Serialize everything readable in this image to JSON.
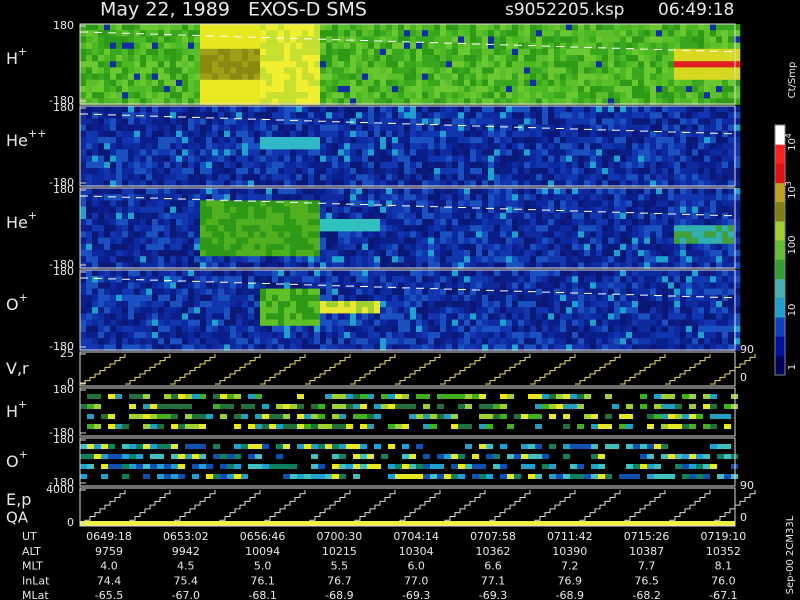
{
  "header": {
    "title": "May 22, 1989   EXOS-D SMS",
    "file": "s9052205.ksp",
    "time": "06:49:18"
  },
  "panels": [
    {
      "label": "H",
      "sup": "+",
      "ticks": [
        180,
        -180
      ]
    },
    {
      "label": "He",
      "sup": "++",
      "ticks": [
        180,
        -180
      ]
    },
    {
      "label": "He",
      "sup": "+",
      "ticks": [
        180,
        -180
      ]
    },
    {
      "label": "O",
      "sup": "+",
      "ticks": [
        180,
        -180
      ]
    },
    {
      "label": "V,r",
      "sup": "",
      "ticks": [
        25,
        0
      ],
      "right_ticks": [
        90,
        0
      ]
    },
    {
      "label": "H",
      "sup": "+",
      "ticks": [
        180,
        -180
      ]
    },
    {
      "label": "O",
      "sup": "+",
      "ticks": [
        180,
        -180
      ]
    },
    {
      "label": "E,p",
      "label2": "QA",
      "sup": "",
      "ticks": [
        4000,
        0
      ],
      "right_ticks": [
        90,
        0
      ]
    }
  ],
  "colorbar": {
    "unit": "Ct/Smp",
    "ticks": [
      {
        "base": "10",
        "exp": "4"
      },
      {
        "base": "10",
        "exp": "3"
      },
      {
        "base": "100",
        "exp": ""
      },
      {
        "base": "10",
        "exp": ""
      },
      {
        "base": "1",
        "exp": ""
      }
    ]
  },
  "table": {
    "rows": [
      {
        "name": "UT",
        "values": [
          "0649:18",
          "0653:02",
          "0656:46",
          "0700:30",
          "0704:14",
          "0707:58",
          "0711:42",
          "0715:26",
          "0719:10"
        ]
      },
      {
        "name": "ALT",
        "values": [
          "9759",
          "9942",
          "10094",
          "10215",
          "10304",
          "10362",
          "10390",
          "10387",
          "10352"
        ]
      },
      {
        "name": "MLT",
        "values": [
          "4.0",
          "4.5",
          "5.0",
          "5.5",
          "6.0",
          "6.6",
          "7.2",
          "7.7",
          "8.1"
        ]
      },
      {
        "name": "InLat",
        "values": [
          "74.4",
          "75.4",
          "76.1",
          "76.7",
          "77.0",
          "77.1",
          "76.9",
          "76.5",
          "76.0"
        ]
      },
      {
        "name": "MLat",
        "values": [
          "-65.5",
          "-67.0",
          "-68.1",
          "-68.9",
          "-69.3",
          "-69.3",
          "-68.9",
          "-68.2",
          "-67.1"
        ]
      }
    ]
  },
  "footer": "Sep-00 2CM33L"
}
